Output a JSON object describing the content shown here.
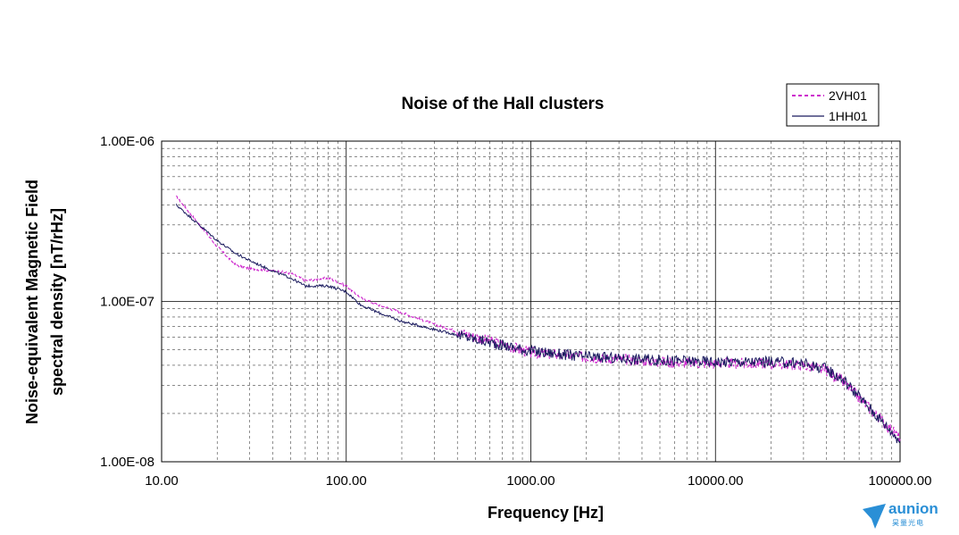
{
  "chart_data": {
    "type": "line",
    "title": "Noise of the Hall clusters",
    "xlabel": "Frequency [Hz]",
    "ylabel_line1": "Noise-equivalent Magnetic Field",
    "ylabel_line2": "spectral density  [nT/rHz]",
    "x_scale": "log",
    "y_scale": "log",
    "xlim": [
      10,
      100000
    ],
    "ylim": [
      1e-08,
      1e-06
    ],
    "grid": true,
    "legend_position": "top-right",
    "x_tick_labels": [
      "10.00",
      "100.00",
      "1000.00",
      "10000.00",
      "100000.00"
    ],
    "y_tick_labels": [
      "1.00E-06",
      "1.00E-07",
      "1.00E-08"
    ],
    "series": [
      {
        "name": "2VH01",
        "color": "#cc22cc",
        "style": "dashed",
        "x": [
          12,
          15,
          20,
          25,
          30,
          40,
          50,
          60,
          80,
          100,
          120,
          150,
          200,
          300,
          500,
          1000,
          2000,
          5000,
          10000,
          20000,
          30000,
          40000,
          50000,
          70000,
          100000
        ],
        "y": [
          4.5e-07,
          3.3e-07,
          2.2e-07,
          1.7e-07,
          1.6e-07,
          1.55e-07,
          1.5e-07,
          1.35e-07,
          1.4e-07,
          1.25e-07,
          1.05e-07,
          9.5e-08,
          8.5e-08,
          7.2e-08,
          6e-08,
          4.8e-08,
          4.5e-08,
          4.2e-08,
          4.1e-08,
          4.1e-08,
          4e-08,
          3.7e-08,
          3.1e-08,
          2.1e-08,
          1.4e-08
        ]
      },
      {
        "name": "1HH01",
        "color": "#1a1a5e",
        "style": "solid",
        "x": [
          12,
          15,
          20,
          25,
          30,
          40,
          50,
          60,
          80,
          100,
          120,
          150,
          200,
          300,
          500,
          1000,
          2000,
          5000,
          10000,
          20000,
          30000,
          40000,
          50000,
          70000,
          100000
        ],
        "y": [
          4e-07,
          3.2e-07,
          2.4e-07,
          2e-07,
          1.8e-07,
          1.55e-07,
          1.4e-07,
          1.25e-07,
          1.25e-07,
          1.15e-07,
          9.5e-08,
          8.5e-08,
          7.5e-08,
          6.7e-08,
          5.8e-08,
          4.9e-08,
          4.5e-08,
          4.3e-08,
          4.2e-08,
          4.2e-08,
          4.1e-08,
          3.8e-08,
          3.2e-08,
          2.1e-08,
          1.35e-08
        ]
      }
    ]
  },
  "watermark": {
    "brand": "aunion",
    "sub": "昊量光电",
    "color": "#2a8fd6"
  }
}
